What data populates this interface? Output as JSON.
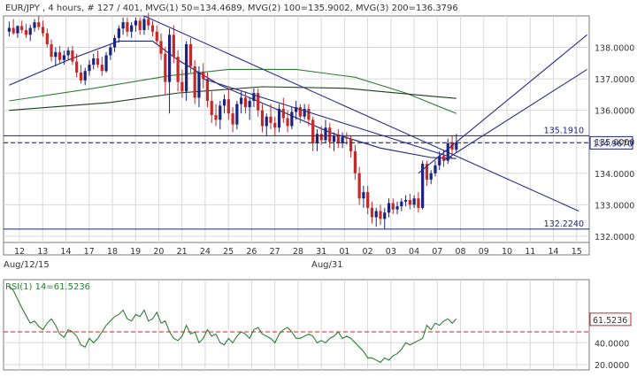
{
  "header": "EUR/JPY , 4 hours, # 127 / 401, MVG(1) 50=134.4689, MVG(2) 100=135.9002, MVG(3) 200=136.3796",
  "rsi_header": "RSI(1) 14=61.5236",
  "x_date_labels": [
    "Aug/12/15",
    "Aug/31"
  ],
  "chart_data": [
    {
      "type": "candlestick",
      "title": "EUR/JPY , 4 hours, # 127 / 401, MVG(1) 50=134.4689, MVG(2) 100=135.9002, MVG(3) 200=136.3796",
      "symbol": "EUR/JPY",
      "timeframe": "4 hours",
      "ylim": [
        131.8,
        139.0
      ],
      "y_ticks": [
        132.0,
        133.0,
        134.0,
        135.0,
        136.0,
        137.0,
        138.0
      ],
      "x_ticks": [
        "12",
        "13",
        "14",
        "17",
        "18",
        "19",
        "20",
        "21",
        "24",
        "25",
        "26",
        "27",
        "28",
        "31",
        "01",
        "02",
        "03",
        "04",
        "07",
        "08",
        "09",
        "10",
        "11",
        "14",
        "15"
      ],
      "grid": true,
      "last_price": 134.967,
      "price_labels": [
        {
          "text": "135.1910",
          "value": 135.191,
          "style": "solid"
        },
        {
          "text": "134.9670",
          "value": 134.967,
          "style": "dashed"
        },
        {
          "text": "132.2240",
          "value": 132.224,
          "style": "solid"
        }
      ],
      "colors": {
        "up": "#1a237e",
        "down": "#c62828",
        "ma50": "#1a237e",
        "ma100": "#2e7d32",
        "ma200": "#1b3d1b",
        "trend": "#2a2a8f"
      },
      "candles": [
        [
          138.5,
          138.82,
          138.35,
          138.62
        ],
        [
          138.62,
          138.9,
          138.4,
          138.45
        ],
        [
          138.45,
          138.7,
          138.3,
          138.68
        ],
        [
          138.68,
          138.85,
          138.45,
          138.55
        ],
        [
          138.55,
          138.75,
          138.3,
          138.4
        ],
        [
          138.4,
          138.72,
          138.2,
          138.62
        ],
        [
          138.62,
          138.9,
          138.5,
          138.8
        ],
        [
          138.8,
          139.0,
          138.55,
          138.65
        ],
        [
          138.65,
          138.85,
          138.35,
          138.45
        ],
        [
          138.45,
          138.6,
          138.0,
          138.1
        ],
        [
          138.1,
          138.25,
          137.55,
          137.7
        ],
        [
          137.7,
          138.0,
          137.4,
          137.85
        ],
        [
          137.85,
          138.05,
          137.5,
          137.6
        ],
        [
          137.6,
          137.9,
          137.45,
          137.75
        ],
        [
          137.75,
          138.0,
          137.6,
          137.9
        ],
        [
          137.9,
          138.05,
          137.45,
          137.55
        ],
        [
          137.55,
          137.8,
          137.05,
          137.2
        ],
        [
          137.2,
          137.45,
          136.85,
          136.95
        ],
        [
          136.95,
          137.35,
          136.8,
          137.25
        ],
        [
          137.25,
          137.6,
          137.1,
          137.45
        ],
        [
          137.45,
          137.8,
          137.3,
          137.65
        ],
        [
          137.65,
          137.9,
          137.35,
          137.45
        ],
        [
          137.45,
          137.7,
          137.1,
          137.25
        ],
        [
          137.25,
          137.85,
          137.2,
          137.75
        ],
        [
          137.75,
          138.1,
          137.6,
          138.0
        ],
        [
          138.0,
          138.4,
          137.85,
          138.3
        ],
        [
          138.3,
          138.7,
          138.15,
          138.6
        ],
        [
          138.6,
          138.95,
          138.4,
          138.8
        ],
        [
          138.8,
          138.95,
          138.35,
          138.5
        ],
        [
          138.5,
          138.8,
          138.3,
          138.7
        ],
        [
          138.7,
          138.95,
          138.5,
          138.85
        ],
        [
          138.85,
          138.95,
          138.4,
          138.55
        ],
        [
          138.55,
          139.0,
          138.4,
          138.9
        ],
        [
          138.9,
          139.1,
          138.55,
          138.7
        ],
        [
          138.7,
          138.85,
          138.35,
          138.5
        ],
        [
          138.5,
          138.7,
          138.1,
          138.2
        ],
        [
          138.2,
          138.45,
          137.6,
          137.8
        ],
        [
          137.8,
          138.0,
          136.5,
          136.9
        ],
        [
          136.9,
          138.6,
          135.9,
          138.4
        ],
        [
          138.4,
          138.7,
          137.5,
          137.7
        ],
        [
          137.7,
          137.9,
          136.6,
          136.9
        ],
        [
          136.9,
          137.3,
          136.4,
          136.6
        ],
        [
          136.6,
          138.2,
          136.3,
          138.1
        ],
        [
          138.1,
          138.3,
          137.2,
          137.4
        ],
        [
          137.4,
          137.6,
          136.2,
          136.4
        ],
        [
          136.4,
          137.4,
          136.1,
          137.2
        ],
        [
          137.2,
          137.5,
          136.7,
          137.0
        ],
        [
          137.0,
          137.2,
          136.1,
          136.3
        ],
        [
          136.3,
          136.6,
          135.6,
          135.85
        ],
        [
          135.85,
          136.2,
          135.5,
          135.7
        ],
        [
          135.7,
          136.3,
          135.4,
          136.15
        ],
        [
          136.15,
          136.5,
          135.9,
          136.35
        ],
        [
          136.35,
          136.7,
          135.7,
          135.9
        ],
        [
          135.9,
          136.1,
          135.3,
          135.55
        ],
        [
          135.55,
          136.3,
          135.4,
          136.2
        ],
        [
          136.2,
          136.6,
          135.9,
          136.4
        ],
        [
          136.4,
          136.6,
          135.9,
          136.1
        ],
        [
          136.1,
          136.4,
          135.7,
          136.3
        ],
        [
          136.3,
          136.7,
          136.1,
          136.55
        ],
        [
          136.55,
          136.7,
          135.8,
          136.0
        ],
        [
          136.0,
          136.2,
          135.3,
          135.5
        ],
        [
          135.5,
          135.9,
          135.2,
          135.8
        ],
        [
          135.8,
          136.2,
          135.4,
          135.6
        ],
        [
          135.6,
          135.8,
          135.2,
          135.45
        ],
        [
          135.45,
          136.2,
          135.3,
          136.05
        ],
        [
          136.05,
          136.4,
          135.6,
          135.75
        ],
        [
          135.75,
          136.0,
          135.3,
          135.5
        ],
        [
          135.5,
          136.1,
          135.4,
          135.95
        ],
        [
          135.95,
          136.3,
          135.7,
          136.1
        ],
        [
          136.1,
          136.2,
          135.6,
          135.8
        ],
        [
          135.8,
          136.2,
          135.7,
          136.05
        ],
        [
          136.05,
          136.2,
          135.5,
          135.7
        ],
        [
          135.7,
          135.8,
          134.7,
          134.95
        ],
        [
          134.95,
          135.4,
          134.7,
          135.25
        ],
        [
          135.25,
          135.5,
          134.9,
          135.05
        ],
        [
          135.05,
          135.7,
          134.95,
          135.45
        ],
        [
          135.45,
          135.6,
          134.8,
          135.0
        ],
        [
          135.0,
          135.3,
          134.7,
          135.2
        ],
        [
          135.2,
          135.4,
          134.8,
          134.95
        ],
        [
          134.95,
          135.3,
          134.8,
          135.15
        ],
        [
          135.15,
          135.3,
          134.9,
          135.1
        ],
        [
          135.1,
          135.2,
          134.5,
          134.7
        ],
        [
          134.7,
          134.9,
          133.8,
          134.0
        ],
        [
          134.0,
          134.2,
          133.0,
          133.2
        ],
        [
          133.2,
          133.6,
          132.9,
          133.4
        ],
        [
          133.4,
          133.6,
          132.7,
          132.9
        ],
        [
          132.9,
          133.1,
          132.4,
          132.6
        ],
        [
          132.6,
          132.9,
          132.3,
          132.8
        ],
        [
          132.8,
          133.0,
          132.35,
          132.55
        ],
        [
          132.55,
          132.9,
          132.22,
          132.75
        ],
        [
          132.75,
          133.2,
          132.6,
          133.05
        ],
        [
          133.05,
          133.2,
          132.7,
          132.85
        ],
        [
          132.85,
          133.1,
          132.7,
          132.95
        ],
        [
          132.95,
          133.2,
          132.8,
          133.1
        ],
        [
          133.1,
          133.3,
          132.95,
          133.15
        ],
        [
          133.15,
          133.35,
          132.85,
          133.0
        ],
        [
          133.0,
          133.3,
          132.9,
          133.2
        ],
        [
          133.2,
          133.4,
          132.75,
          132.9
        ],
        [
          132.9,
          134.4,
          132.85,
          134.3
        ],
        [
          134.3,
          134.4,
          133.6,
          133.8
        ],
        [
          133.8,
          134.1,
          133.65,
          134.0
        ],
        [
          134.0,
          134.4,
          133.9,
          134.25
        ],
        [
          134.25,
          134.7,
          134.1,
          134.55
        ],
        [
          134.55,
          134.75,
          134.2,
          134.4
        ],
        [
          134.4,
          135.1,
          134.3,
          134.95
        ],
        [
          134.95,
          135.2,
          134.6,
          134.75
        ],
        [
          134.75,
          135.25,
          134.65,
          134.97
        ]
      ],
      "moving_averages": [
        {
          "name": "MVG(1) 50",
          "color": "#1a237e",
          "points": [
            [
              0,
              136.8
            ],
            [
              14,
              137.6
            ],
            [
              26,
              138.2
            ],
            [
              34,
              138.2
            ],
            [
              40,
              137.6
            ],
            [
              50,
              136.8
            ],
            [
              64,
              136.0
            ],
            [
              76,
              135.3
            ],
            [
              88,
              134.8
            ],
            [
              100,
              134.5
            ],
            [
              106,
              134.47
            ]
          ]
        },
        {
          "name": "MVG(2) 100",
          "color": "#2e7d32",
          "points": [
            [
              0,
              136.3
            ],
            [
              20,
              136.7
            ],
            [
              38,
              137.1
            ],
            [
              52,
              137.3
            ],
            [
              68,
              137.3
            ],
            [
              82,
              137.05
            ],
            [
              94,
              136.55
            ],
            [
              106,
              135.9
            ]
          ]
        },
        {
          "name": "MVG(3) 200",
          "color": "#1b3d1b",
          "points": [
            [
              0,
              136.0
            ],
            [
              24,
              136.25
            ],
            [
              40,
              136.55
            ],
            [
              60,
              136.75
            ],
            [
              80,
              136.7
            ],
            [
              100,
              136.45
            ],
            [
              106,
              136.38
            ]
          ]
        }
      ],
      "trendlines": [
        {
          "x1": 32,
          "y1": 139.0,
          "x2": 135,
          "y2": 132.8
        },
        {
          "x1": 46,
          "y1": 137.0,
          "x2": 105,
          "y2": 134.5
        },
        {
          "x1": 97,
          "y1": 134.0,
          "x2": 137,
          "y2": 138.4
        },
        {
          "x1": 103,
          "y1": 134.4,
          "x2": 137,
          "y2": 137.3
        }
      ]
    },
    {
      "type": "line",
      "title": "RSI(1) 14=61.5236",
      "series_label": "RSI(1) 14",
      "ylim": [
        15,
        98
      ],
      "y_ticks": [
        20.0,
        40.0
      ],
      "last_value": 61.5236,
      "last_value_label": "61.5236",
      "reference_level": 50,
      "color": "#2e7d32",
      "ref_color": "#c62828",
      "values": [
        92,
        88,
        80,
        72,
        65,
        58,
        60,
        55,
        52,
        58,
        62,
        56,
        48,
        45,
        52,
        50,
        46,
        38,
        36,
        44,
        40,
        44,
        50,
        56,
        60,
        64,
        66,
        70,
        62,
        60,
        66,
        64,
        70,
        60,
        62,
        68,
        58,
        60,
        50,
        44,
        42,
        46,
        56,
        48,
        50,
        40,
        44,
        52,
        46,
        48,
        40,
        38,
        44,
        40,
        46,
        50,
        48,
        44,
        52,
        54,
        48,
        46,
        44,
        40,
        48,
        52,
        54,
        50,
        44,
        44,
        46,
        48,
        46,
        40,
        42,
        40,
        44,
        46,
        50,
        44,
        46,
        44,
        40,
        36,
        32,
        26,
        26,
        24,
        22,
        26,
        24,
        28,
        30,
        34,
        40,
        38,
        40,
        42,
        44,
        56,
        52,
        58,
        56,
        60,
        62,
        58,
        62
      ]
    }
  ]
}
